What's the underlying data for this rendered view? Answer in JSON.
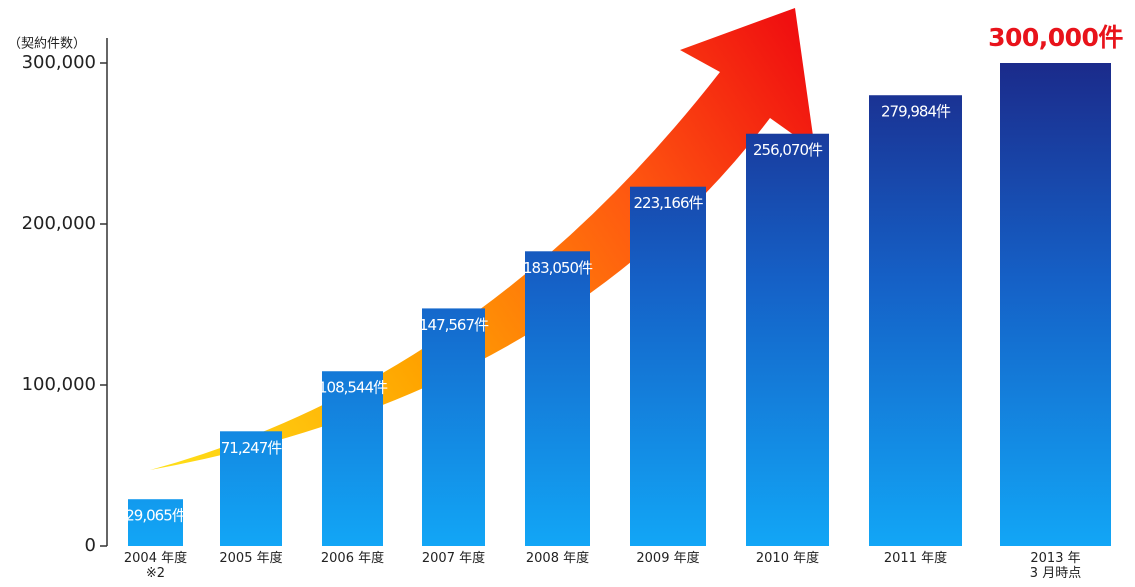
{
  "chart_data": {
    "type": "bar",
    "y_axis_label": "（契約件数）",
    "categories": [
      "2004 年度\n※2",
      "2005 年度",
      "2006 年度",
      "2007 年度",
      "2008 年度",
      "2009 年度",
      "2010 年度",
      "2011 年度",
      "2013 年\n3 月時点"
    ],
    "values": [
      29065,
      71247,
      108544,
      147567,
      183050,
      223166,
      256070,
      279984,
      300000
    ],
    "value_labels": [
      "29,065件",
      "71,247件",
      "108,544件",
      "147,567件",
      "183,050件",
      "223,166件",
      "256,070件",
      "279,984件",
      "300,000件"
    ],
    "ylim": [
      0,
      300000
    ],
    "yticks": [
      0,
      {
        "value": 100000,
        "label": "100,000"
      },
      {
        "value": 200000,
        "label": "200,000"
      },
      {
        "value": 300000,
        "label": "300,000"
      }
    ]
  }
}
